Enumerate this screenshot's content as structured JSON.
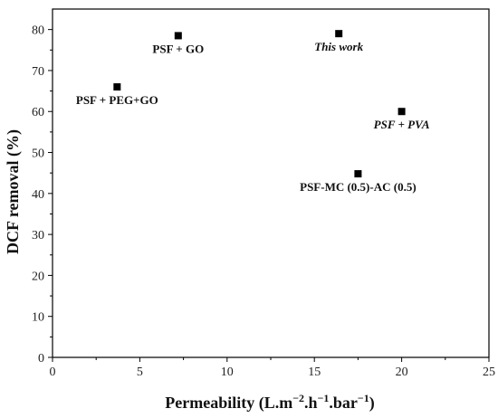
{
  "chart_data": {
    "type": "scatter",
    "xlabel": "Permeability (L.m",
    "xlabel_sup1": "−2",
    "xlabel_mid1": ".h",
    "xlabel_sup2": "−1",
    "xlabel_mid2": ".bar",
    "xlabel_sup3": "−1",
    "xlabel_end": ")",
    "ylabel": "DCF removal (%)",
    "xlim": [
      0,
      25
    ],
    "ylim": [
      0,
      85
    ],
    "xticks": [
      0,
      5,
      10,
      15,
      20,
      25
    ],
    "yticks": [
      0,
      10,
      20,
      30,
      40,
      50,
      60,
      70,
      80
    ],
    "grid": false,
    "marker_color": "#000000",
    "points": [
      {
        "label": "PSF + GO",
        "x": 7.2,
        "y": 78.5,
        "italic": false,
        "label_pos": "below"
      },
      {
        "label": "This work",
        "x": 16.4,
        "y": 79.0,
        "italic": true,
        "label_pos": "below"
      },
      {
        "label": "PSF + PEG+GO",
        "x": 3.7,
        "y": 66.0,
        "italic": false,
        "label_pos": "below"
      },
      {
        "label": "PSF + PVA",
        "x": 20.0,
        "y": 60.0,
        "italic": true,
        "label_pos": "below"
      },
      {
        "label": "PSF-MC (0.5)-AC (0.5)",
        "x": 17.5,
        "y": 44.8,
        "italic": false,
        "label_pos": "below"
      }
    ]
  }
}
